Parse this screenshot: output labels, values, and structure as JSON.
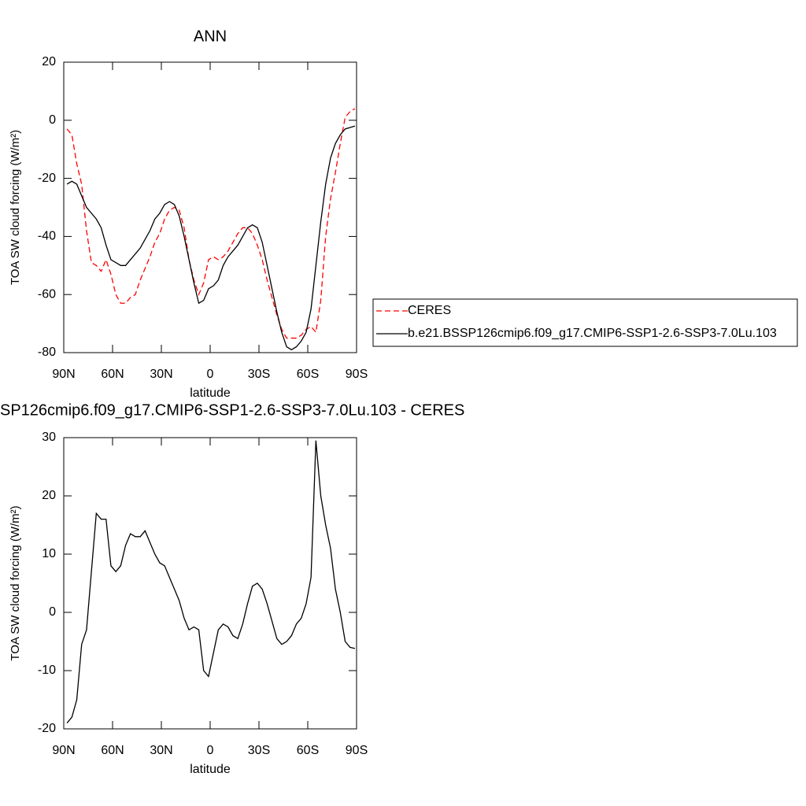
{
  "chart_data": [
    {
      "type": "line",
      "title": "ANN",
      "x_label": "latitude",
      "y_label": "TOA SW cloud forcing (W/m²)",
      "x": [
        88,
        85,
        82,
        79,
        76,
        73,
        70,
        67,
        64,
        61,
        58,
        55,
        52,
        49,
        46,
        43,
        40,
        37,
        34,
        31,
        28,
        25,
        22,
        19,
        16,
        13,
        10,
        7,
        4,
        1,
        -2,
        -5,
        -8,
        -11,
        -14,
        -17,
        -20,
        -23,
        -26,
        -29,
        -32,
        -35,
        -38,
        -41,
        -44,
        -47,
        -50,
        -53,
        -56,
        -59,
        -62,
        -65,
        -68,
        -71,
        -74,
        -77,
        -80,
        -83,
        -86,
        -89
      ],
      "series": [
        {
          "name": "CERES",
          "color": "#ff0000",
          "dashed": true,
          "values": [
            -3,
            -5,
            -15,
            -22,
            -38,
            -49,
            -50,
            -52,
            -48,
            -53,
            -60,
            -63,
            -63,
            -61,
            -60,
            -55,
            -51,
            -47,
            -42,
            -39,
            -34,
            -31,
            -30,
            -31,
            -37,
            -48,
            -55,
            -60,
            -56,
            -48,
            -47,
            -48,
            -47,
            -45,
            -42,
            -39,
            -37,
            -37,
            -39,
            -43,
            -48,
            -55,
            -61,
            -67,
            -72,
            -75,
            -75,
            -75,
            -74,
            -72,
            -71,
            -73,
            -62,
            -40,
            -27,
            -18,
            -8,
            1,
            3,
            4
          ]
        },
        {
          "name": "b.e21.BSSP126cmip6.f09_g17.CMIP6-SSP1-2.6-SSP3-7.0Lu.103",
          "color": "#000000",
          "dashed": false,
          "values": [
            -22,
            -21,
            -22,
            -26,
            -30,
            -32,
            -34,
            -37,
            -43,
            -48,
            -49,
            -50,
            -50,
            -48,
            -46,
            -44,
            -41,
            -38,
            -34,
            -32,
            -29,
            -28,
            -29,
            -33,
            -40,
            -48,
            -56,
            -63,
            -62,
            -58,
            -57,
            -55,
            -50,
            -47,
            -45,
            -43,
            -40,
            -37,
            -36,
            -37,
            -42,
            -50,
            -58,
            -66,
            -73,
            -78,
            -79,
            -78,
            -76,
            -73,
            -65,
            -50,
            -35,
            -22,
            -13,
            -8,
            -5,
            -3,
            -2.5,
            -2
          ]
        }
      ],
      "xlim": [
        90,
        -90
      ],
      "xticks": [
        {
          "value": 90,
          "label": "90N"
        },
        {
          "value": 60,
          "label": "60N"
        },
        {
          "value": 30,
          "label": "30N"
        },
        0,
        {
          "value": -30,
          "label": "30S"
        },
        {
          "value": -60,
          "label": "60S"
        },
        {
          "value": -90,
          "label": "90S"
        }
      ],
      "ylim": [
        -80,
        20
      ],
      "yticks": [
        20,
        0,
        -20,
        -40,
        -60,
        -80
      ],
      "legend": "right"
    },
    {
      "type": "line",
      "title": "SP126cmip6.f09_g17.CMIP6-SSP1-2.6-SSP3-7.0Lu.103 - CERES",
      "x_label": "latitude",
      "y_label": "TOA SW cloud forcing (W/m²)",
      "x": [
        88,
        85,
        82,
        79,
        76,
        73,
        70,
        67,
        64,
        61,
        58,
        55,
        52,
        49,
        46,
        43,
        40,
        37,
        34,
        31,
        28,
        25,
        22,
        19,
        16,
        13,
        10,
        7,
        4,
        1,
        -2,
        -5,
        -8,
        -11,
        -14,
        -17,
        -20,
        -23,
        -26,
        -29,
        -32,
        -35,
        -38,
        -41,
        -44,
        -47,
        -50,
        -53,
        -56,
        -59,
        -62,
        -65,
        -68,
        -71,
        -74,
        -77,
        -80,
        -83,
        -86,
        -89
      ],
      "color": "#000000",
      "values": [
        -19,
        -18,
        -15,
        -5.5,
        -3,
        7,
        17,
        16,
        16,
        8,
        7,
        8,
        11.5,
        13.5,
        13,
        13,
        14,
        12,
        10,
        8.5,
        8,
        6,
        4,
        2,
        -1,
        -3,
        -2.5,
        -3,
        -10,
        -11,
        -7,
        -3,
        -2,
        -2.5,
        -4,
        -4.5,
        -2,
        1.5,
        4.5,
        5,
        4,
        1.5,
        -1.5,
        -4.5,
        -5.5,
        -5,
        -4,
        -2,
        -1,
        1.5,
        6,
        29.5,
        20,
        15,
        11,
        4,
        0,
        -5,
        -6,
        -6.2
      ],
      "xlim": [
        90,
        -90
      ],
      "xticks": [
        {
          "value": 90,
          "label": "90N"
        },
        {
          "value": 60,
          "label": "60N"
        },
        {
          "value": 30,
          "label": "30N"
        },
        0,
        {
          "value": -30,
          "label": "30S"
        },
        {
          "value": -60,
          "label": "60S"
        },
        {
          "value": -90,
          "label": "90S"
        }
      ],
      "ylim": [
        -20,
        30
      ],
      "yticks": [
        30,
        20,
        10,
        0,
        -10,
        -20
      ]
    }
  ]
}
